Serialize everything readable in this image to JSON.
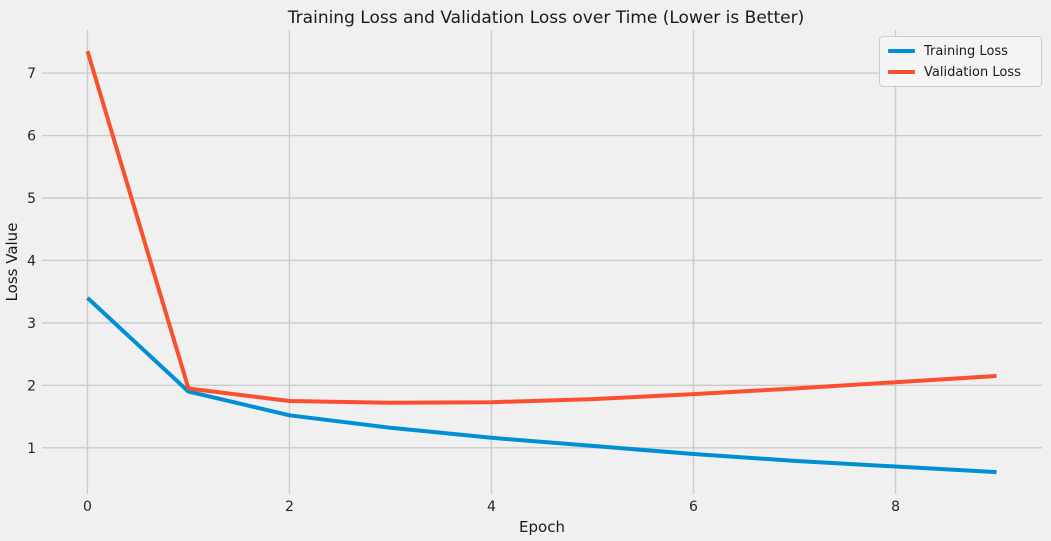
{
  "chart_data": {
    "type": "line",
    "title": "Training Loss and Validation Loss over Time (Lower is Better)",
    "xlabel": "Epoch",
    "ylabel": "Loss Value",
    "x": [
      0,
      1,
      2,
      3,
      4,
      5,
      6,
      7,
      8,
      9
    ],
    "series": [
      {
        "name": "Training Loss",
        "color": "#008fd5",
        "values": [
          3.4,
          1.9,
          1.52,
          1.32,
          1.16,
          1.03,
          0.9,
          0.79,
          0.7,
          0.61
        ]
      },
      {
        "name": "Validation Loss",
        "color": "#fc4f30",
        "values": [
          7.35,
          1.95,
          1.75,
          1.72,
          1.73,
          1.78,
          1.86,
          1.95,
          2.05,
          2.15
        ]
      }
    ],
    "x_ticks": [
      0,
      2,
      4,
      6,
      8
    ],
    "y_ticks": [
      1,
      2,
      3,
      4,
      5,
      6,
      7
    ],
    "xlim": [
      -0.45,
      9.45
    ],
    "ylim": [
      0.26,
      7.69
    ],
    "grid": true,
    "legend_position": "upper right",
    "background_color": "#f0f0f0",
    "grid_color": "#cbcbcb",
    "line_width": 4
  }
}
